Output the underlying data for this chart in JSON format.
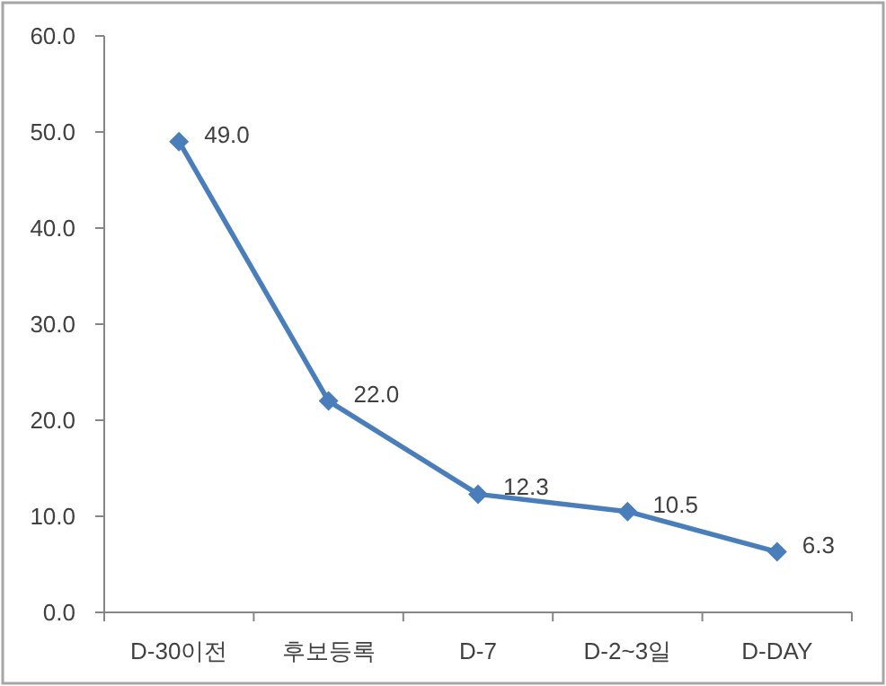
{
  "chart_data": {
    "type": "line",
    "categories": [
      "D-30이전",
      "후보등록",
      "D-7",
      "D-2~3일",
      "D-DAY"
    ],
    "series": [
      {
        "color": "#4a7ebb",
        "values": [
          49.0,
          22.0,
          12.3,
          10.5,
          6.3
        ],
        "value_labels": [
          "49.0",
          "22.0",
          "12.3",
          "10.5",
          "6.3"
        ]
      }
    ],
    "ylim": [
      0,
      60
    ],
    "yticks": [
      {
        "value": 0,
        "label": "0.0"
      },
      {
        "value": 10,
        "label": "10.0"
      },
      {
        "value": 20,
        "label": "20.0"
      },
      {
        "value": 30,
        "label": "30.0"
      },
      {
        "value": 40,
        "label": "40.0"
      },
      {
        "value": 50,
        "label": "50.0"
      },
      {
        "value": 60,
        "label": "60.0"
      }
    ],
    "marker": "diamond",
    "line_style": "solid"
  }
}
